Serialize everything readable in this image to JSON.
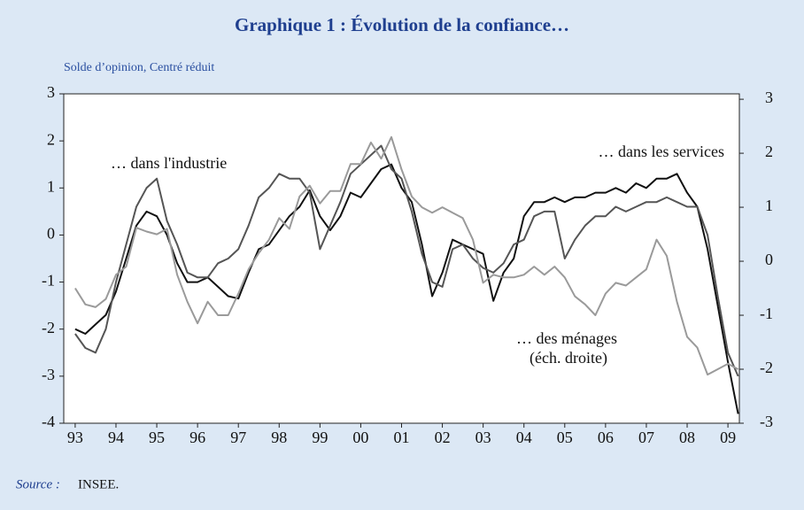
{
  "chart_data": {
    "type": "line",
    "title": "Graphique 1 : Évolution de la confiance…",
    "subtitle": "Solde d’opinion, Centré réduit",
    "source_label": "Source :",
    "source": "INSEE.",
    "annotations": [
      "… dans l'industrie",
      "… dans les services",
      "… des ménages",
      "(éch. droite)"
    ],
    "x": [
      1993,
      1993.25,
      1993.5,
      1993.75,
      1994,
      1994.25,
      1994.5,
      1994.75,
      1995,
      1995.25,
      1995.5,
      1995.75,
      1996,
      1996.25,
      1996.5,
      1996.75,
      1997,
      1997.25,
      1997.5,
      1997.75,
      1998,
      1998.25,
      1998.5,
      1998.75,
      1999,
      1999.25,
      1999.5,
      1999.75,
      2000,
      2000.25,
      2000.5,
      2000.75,
      2001,
      2001.25,
      2001.5,
      2001.75,
      2002,
      2002.25,
      2002.5,
      2002.75,
      2003,
      2003.25,
      2003.5,
      2003.75,
      2004,
      2004.25,
      2004.5,
      2004.75,
      2005,
      2005.25,
      2005.5,
      2005.75,
      2006,
      2006.25,
      2006.5,
      2006.75,
      2007,
      2007.25,
      2007.5,
      2007.75,
      2008,
      2008.25,
      2008.5,
      2008.75,
      2009,
      2009.25
    ],
    "series": [
      {
        "name": "industrie",
        "color": "#111111",
        "axis": "y",
        "values": [
          -2.0,
          -2.1,
          -1.9,
          -1.7,
          -1.2,
          -0.5,
          0.2,
          0.5,
          0.4,
          0.0,
          -0.6,
          -1.0,
          -1.0,
          -0.9,
          -1.1,
          -1.3,
          -1.35,
          -0.8,
          -0.3,
          -0.2,
          0.1,
          0.4,
          0.6,
          0.95,
          0.4,
          0.1,
          0.4,
          0.9,
          0.8,
          1.1,
          1.4,
          1.5,
          1.0,
          0.7,
          -0.2,
          -1.3,
          -0.8,
          -0.1,
          -0.2,
          -0.3,
          -0.4,
          -1.4,
          -0.8,
          -0.5,
          0.4,
          0.7,
          0.7,
          0.8,
          0.7,
          0.8,
          0.8,
          0.9,
          0.9,
          1.0,
          0.9,
          1.1,
          1.0,
          1.2,
          1.2,
          1.3,
          0.9,
          0.6,
          -0.3,
          -1.5,
          -2.7,
          -3.8
        ]
      },
      {
        "name": "services",
        "color": "#555555",
        "axis": "y",
        "values": [
          -2.1,
          -2.4,
          -2.5,
          -2.0,
          -1.0,
          -0.2,
          0.6,
          1.0,
          1.2,
          0.3,
          -0.2,
          -0.8,
          -0.9,
          -0.9,
          -0.6,
          -0.5,
          -0.3,
          0.2,
          0.8,
          1.0,
          1.3,
          1.2,
          1.2,
          0.9,
          -0.3,
          0.2,
          0.7,
          1.3,
          1.5,
          1.7,
          1.9,
          1.4,
          1.2,
          0.5,
          -0.4,
          -1.0,
          -1.1,
          -0.3,
          -0.2,
          -0.5,
          -0.7,
          -0.8,
          -0.6,
          -0.2,
          -0.1,
          0.4,
          0.5,
          0.5,
          -0.5,
          -0.1,
          0.2,
          0.4,
          0.4,
          0.6,
          0.5,
          0.6,
          0.7,
          0.7,
          0.8,
          0.7,
          0.6,
          0.6,
          0.0,
          -1.3,
          -2.5,
          -3.0
        ]
      },
      {
        "name": "ménages",
        "color": "#9a9a9a",
        "axis": "y2",
        "values": [
          -0.5,
          -0.8,
          -0.85,
          -0.7,
          -0.25,
          -0.1,
          0.62,
          0.55,
          0.5,
          0.6,
          -0.25,
          -0.75,
          -1.15,
          -0.75,
          -1.0,
          -1.0,
          -0.6,
          -0.15,
          0.15,
          0.4,
          0.8,
          0.6,
          1.2,
          1.4,
          1.07,
          1.3,
          1.3,
          1.8,
          1.8,
          2.2,
          1.9,
          2.3,
          1.7,
          1.2,
          1.0,
          0.9,
          1.0,
          0.9,
          0.8,
          0.4,
          -0.4,
          -0.25,
          -0.3,
          -0.3,
          -0.25,
          -0.1,
          -0.25,
          -0.1,
          -0.3,
          -0.65,
          -0.8,
          -1.0,
          -0.6,
          -0.4,
          -0.45,
          -0.3,
          -0.15,
          0.4,
          0.1,
          -0.75,
          -1.4,
          -1.6,
          -2.1,
          -2.0,
          -1.9,
          -2.0
        ]
      }
    ],
    "xlim": [
      1992.72,
      2009.28
    ],
    "xticks": [
      {
        "value": 1993,
        "label": "93"
      },
      {
        "value": 1994,
        "label": "94"
      },
      {
        "value": 1995,
        "label": "95"
      },
      {
        "value": 1996,
        "label": "96"
      },
      {
        "value": 1997,
        "label": "97"
      },
      {
        "value": 1998,
        "label": "98"
      },
      {
        "value": 1999,
        "label": "99"
      },
      {
        "value": 2000,
        "label": "00"
      },
      {
        "value": 2001,
        "label": "01"
      },
      {
        "value": 2002,
        "label": "02"
      },
      {
        "value": 2003,
        "label": "03"
      },
      {
        "value": 2004,
        "label": "04"
      },
      {
        "value": 2005,
        "label": "05"
      },
      {
        "value": 2006,
        "label": "06"
      },
      {
        "value": 2007,
        "label": "07"
      },
      {
        "value": 2008,
        "label": "08"
      },
      {
        "value": 2009,
        "label": "09"
      }
    ],
    "ylim": [
      -4,
      3
    ],
    "yticks": [
      -4,
      -3,
      -2,
      -1,
      0,
      1,
      2,
      3
    ],
    "y2lim": [
      -3,
      3.1
    ],
    "y2ticks": [
      -3,
      -2,
      -1,
      0,
      1,
      2,
      3
    ],
    "grid": false
  }
}
